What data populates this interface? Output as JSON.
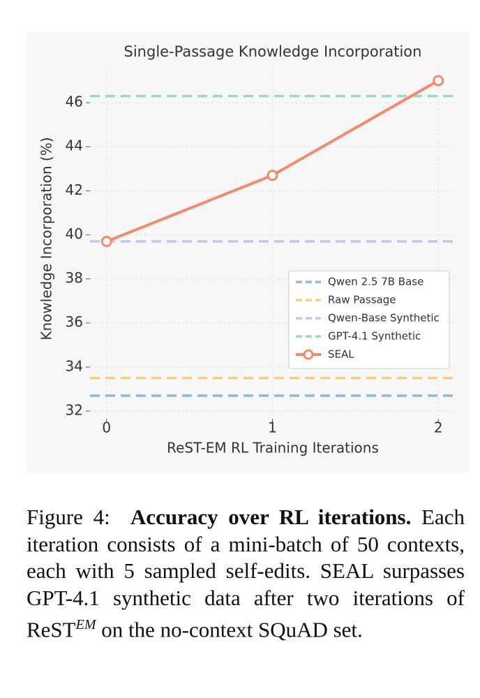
{
  "chart_data": {
    "type": "line",
    "title": "Single-Passage Knowledge Incorporation",
    "xlabel": "ReST-EM RL Training Iterations",
    "ylabel": "Knowledge Incorporation (%)",
    "x": [
      0,
      1,
      2
    ],
    "xlim": [
      -0.1,
      2.1
    ],
    "xticks": [
      0,
      1,
      2
    ],
    "ylim": [
      31.65,
      47.65
    ],
    "yticks": [
      32,
      34,
      36,
      38,
      40,
      42,
      44,
      46
    ],
    "grid": true,
    "legend": "lower right",
    "reference_lines": [
      {
        "name": "Qwen 2.5 7B Base",
        "color": "#8fb9d6",
        "value": 32.7
      },
      {
        "name": "Raw Passage",
        "color": "#f8cf74",
        "value": 33.5
      },
      {
        "name": "Qwen-Base Synthetic",
        "color": "#c7c2ea",
        "value": 39.7
      },
      {
        "name": "GPT-4.1 Synthetic",
        "color": "#95dcc0",
        "value": 46.3
      }
    ],
    "series": [
      {
        "name": "SEAL",
        "color": "#f4896b",
        "values": [
          39.7,
          42.7,
          47.0
        ]
      }
    ]
  },
  "caption": {
    "label": "Figure 4:",
    "bold": "Accuracy over RL iterations.",
    "text": "Each iteration consists of a mini-batch of 50 contexts, each with 5 sampled self-edits. SEAL surpasses GPT-4.1 synthetic data after two iterations of ReST",
    "sup": "EM",
    "tail": "on the no-context SQuAD set."
  }
}
